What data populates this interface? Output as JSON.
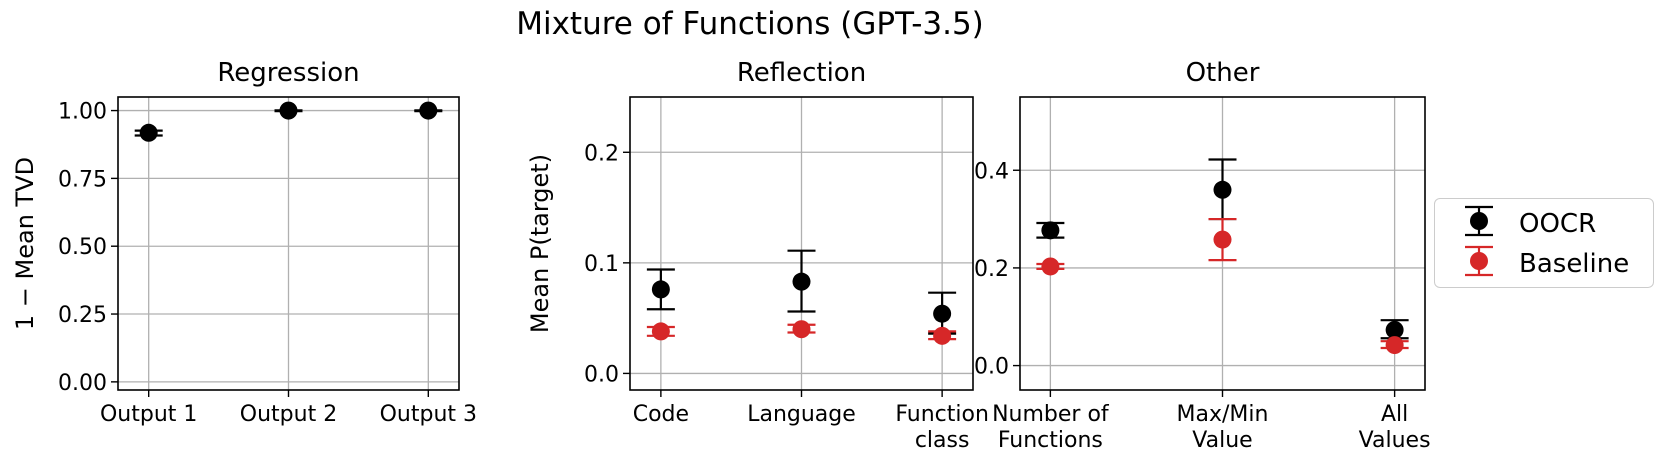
{
  "title": "Mixture of Functions (GPT-3.5)",
  "legend": {
    "entries": [
      "OOCR",
      "Baseline"
    ]
  },
  "colors": {
    "oocr": "#000000",
    "baseline": "#d62728",
    "grid": "#b0b0b0"
  },
  "chart_data": [
    {
      "type": "scatter",
      "title": "Regression",
      "ylabel": "1 −  Mean TVD",
      "xlabel": "",
      "categories": [
        [
          "Output 1"
        ],
        [
          "Output 2"
        ],
        [
          "Output 3"
        ]
      ],
      "ylim": [
        -0.03,
        1.05
      ],
      "yticks": [
        0.0,
        0.25,
        0.5,
        0.75,
        1.0
      ],
      "ytick_labels": [
        "0.00",
        "0.25",
        "0.50",
        "0.75",
        "1.00"
      ],
      "grid": true,
      "series": [
        {
          "name": "OOCR",
          "values": [
            0.918,
            1.0,
            1.0
          ],
          "err_low": [
            0.908,
            0.998,
            0.998
          ],
          "err_high": [
            0.926,
            1.001,
            1.001
          ]
        }
      ]
    },
    {
      "type": "scatter",
      "title": "Reflection",
      "ylabel": "Mean P(target)",
      "xlabel": "",
      "categories": [
        [
          "Code"
        ],
        [
          "Language"
        ],
        [
          "Function",
          "class"
        ]
      ],
      "ylim": [
        -0.015,
        0.25
      ],
      "yticks": [
        0.0,
        0.1,
        0.2
      ],
      "ytick_labels": [
        "0.0",
        "0.1",
        "0.2"
      ],
      "grid": true,
      "series": [
        {
          "name": "OOCR",
          "values": [
            0.076,
            0.083,
            0.054
          ],
          "err_low": [
            0.058,
            0.056,
            0.036
          ],
          "err_high": [
            0.094,
            0.111,
            0.073
          ]
        },
        {
          "name": "Baseline",
          "values": [
            0.038,
            0.04,
            0.034
          ],
          "err_low": [
            0.034,
            0.037,
            0.031
          ],
          "err_high": [
            0.042,
            0.044,
            0.038
          ]
        }
      ]
    },
    {
      "type": "scatter",
      "title": "Other",
      "ylabel": "",
      "xlabel": "",
      "categories": [
        [
          "Number of",
          "Functions"
        ],
        [
          "Max/Min",
          "Value"
        ],
        [
          "All",
          "Values"
        ]
      ],
      "ylim": [
        -0.05,
        0.55
      ],
      "yticks": [
        0.0,
        0.2,
        0.4
      ],
      "ytick_labels": [
        "0.0",
        "0.2",
        "0.4"
      ],
      "grid": true,
      "series": [
        {
          "name": "OOCR",
          "values": [
            0.277,
            0.36,
            0.073
          ],
          "err_low": [
            0.262,
            0.3,
            0.056
          ],
          "err_high": [
            0.292,
            0.422,
            0.093
          ]
        },
        {
          "name": "Baseline",
          "values": [
            0.203,
            0.258,
            0.042
          ],
          "err_low": [
            0.198,
            0.216,
            0.036
          ],
          "err_high": [
            0.208,
            0.3,
            0.05
          ]
        }
      ]
    }
  ]
}
